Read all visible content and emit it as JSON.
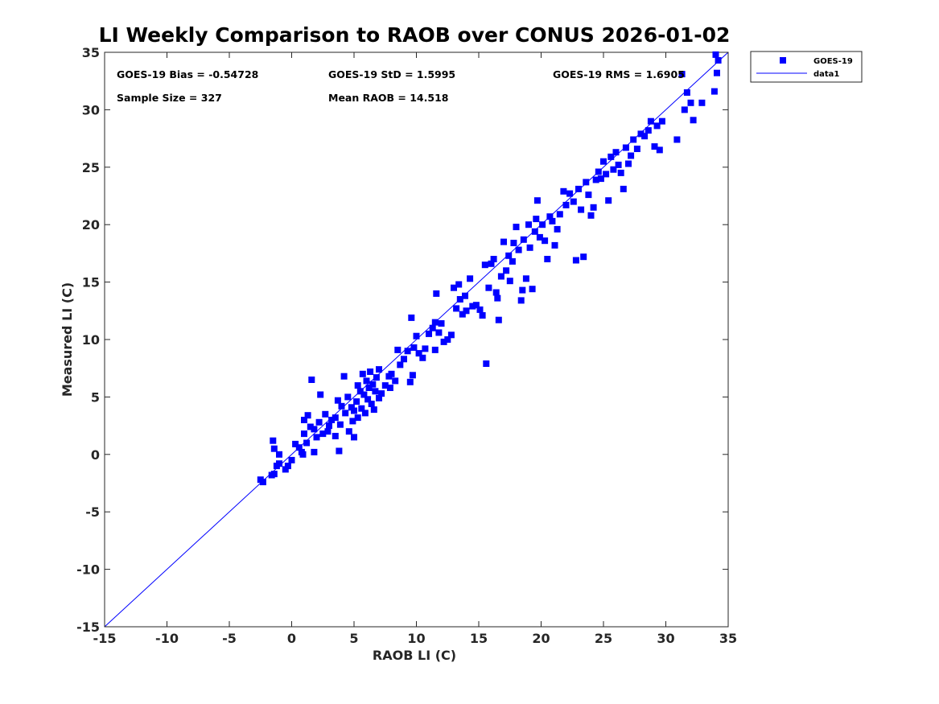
{
  "chart_data": {
    "type": "scatter",
    "title": "LI Weekly Comparison to RAOB over CONUS 2026-01-02",
    "xlabel": "RAOB LI (C)",
    "ylabel": "Measured LI (C)",
    "xlim": [
      -15,
      35
    ],
    "ylim": [
      -15,
      35
    ],
    "xticks": [
      -15,
      -10,
      -5,
      0,
      5,
      10,
      15,
      20,
      25,
      30,
      35
    ],
    "yticks": [
      -15,
      -10,
      -5,
      0,
      5,
      10,
      15,
      20,
      25,
      30,
      35
    ],
    "grid": false,
    "legend_position": "outside-top-right",
    "marker_color": "#0000ff",
    "line_color": "#0000ff",
    "stats": {
      "bias": "GOES-19 Bias = -0.54728",
      "std": "GOES-19 StD = 1.5995",
      "rms": "GOES-19 RMS = 1.6905",
      "sample": "Sample Size = 327",
      "mean": "Mean RAOB = 14.518"
    },
    "series": [
      {
        "name": "GOES-19",
        "kind": "scatter",
        "points": [
          [
            -2.5,
            -2.2
          ],
          [
            -2.3,
            -2.4
          ],
          [
            -1.6,
            -1.8
          ],
          [
            -1.4,
            -1.7
          ],
          [
            -1.2,
            -1.0
          ],
          [
            -1.0,
            -0.8
          ],
          [
            -1.5,
            1.2
          ],
          [
            -1.4,
            0.5
          ],
          [
            -1.0,
            0.0
          ],
          [
            -0.5,
            -1.3
          ],
          [
            -0.3,
            -1.0
          ],
          [
            0.0,
            -0.5
          ],
          [
            0.3,
            0.9
          ],
          [
            0.6,
            0.6
          ],
          [
            0.8,
            0.2
          ],
          [
            0.9,
            0.0
          ],
          [
            1.0,
            1.8
          ],
          [
            1.0,
            3.0
          ],
          [
            1.2,
            1.0
          ],
          [
            1.3,
            3.4
          ],
          [
            1.5,
            2.4
          ],
          [
            1.6,
            6.5
          ],
          [
            1.8,
            2.2
          ],
          [
            1.8,
            0.2
          ],
          [
            2.0,
            1.5
          ],
          [
            2.2,
            2.8
          ],
          [
            2.3,
            5.2
          ],
          [
            2.5,
            1.8
          ],
          [
            2.7,
            3.5
          ],
          [
            2.9,
            2.0
          ],
          [
            3.0,
            2.5
          ],
          [
            3.2,
            3.0
          ],
          [
            3.5,
            3.2
          ],
          [
            3.5,
            1.6
          ],
          [
            3.7,
            4.7
          ],
          [
            3.8,
            0.3
          ],
          [
            3.9,
            2.6
          ],
          [
            4.0,
            4.2
          ],
          [
            4.2,
            6.8
          ],
          [
            4.3,
            3.6
          ],
          [
            4.5,
            5.0
          ],
          [
            4.6,
            2.0
          ],
          [
            4.8,
            4.1
          ],
          [
            4.9,
            2.9
          ],
          [
            5.0,
            1.5
          ],
          [
            5.0,
            3.8
          ],
          [
            5.2,
            4.6
          ],
          [
            5.3,
            3.2
          ],
          [
            5.3,
            6.0
          ],
          [
            5.5,
            5.5
          ],
          [
            5.6,
            4.0
          ],
          [
            5.7,
            7.0
          ],
          [
            5.8,
            5.2
          ],
          [
            5.9,
            3.6
          ],
          [
            6.0,
            6.4
          ],
          [
            6.1,
            4.8
          ],
          [
            6.2,
            5.8
          ],
          [
            6.3,
            7.2
          ],
          [
            6.4,
            4.4
          ],
          [
            6.5,
            6.1
          ],
          [
            6.6,
            3.9
          ],
          [
            6.7,
            5.5
          ],
          [
            6.8,
            6.7
          ],
          [
            7.0,
            4.9
          ],
          [
            7.0,
            7.4
          ],
          [
            7.2,
            5.3
          ],
          [
            7.5,
            6.0
          ],
          [
            7.8,
            6.8
          ],
          [
            7.9,
            5.8
          ],
          [
            8.0,
            7.0
          ],
          [
            8.3,
            6.4
          ],
          [
            8.5,
            9.1
          ],
          [
            8.7,
            7.8
          ],
          [
            9.0,
            8.3
          ],
          [
            9.3,
            9.0
          ],
          [
            9.5,
            6.3
          ],
          [
            9.6,
            11.9
          ],
          [
            9.7,
            6.9
          ],
          [
            9.8,
            9.3
          ],
          [
            10.0,
            10.3
          ],
          [
            10.2,
            8.8
          ],
          [
            10.5,
            8.4
          ],
          [
            10.7,
            9.2
          ],
          [
            11.0,
            10.5
          ],
          [
            11.3,
            11.0
          ],
          [
            11.5,
            9.1
          ],
          [
            11.5,
            11.5
          ],
          [
            11.6,
            14.0
          ],
          [
            11.8,
            10.6
          ],
          [
            12.0,
            11.4
          ],
          [
            12.2,
            9.8
          ],
          [
            12.5,
            10.0
          ],
          [
            12.8,
            10.4
          ],
          [
            13.0,
            14.5
          ],
          [
            13.2,
            12.7
          ],
          [
            13.4,
            14.8
          ],
          [
            13.5,
            13.5
          ],
          [
            13.7,
            12.2
          ],
          [
            13.9,
            13.8
          ],
          [
            14.0,
            12.5
          ],
          [
            14.3,
            15.3
          ],
          [
            14.5,
            12.9
          ],
          [
            14.8,
            13.0
          ],
          [
            15.1,
            12.6
          ],
          [
            15.3,
            12.1
          ],
          [
            15.5,
            16.5
          ],
          [
            15.6,
            7.9
          ],
          [
            15.8,
            14.5
          ],
          [
            16.0,
            16.6
          ],
          [
            16.2,
            17.0
          ],
          [
            16.4,
            14.1
          ],
          [
            16.5,
            13.6
          ],
          [
            16.6,
            11.7
          ],
          [
            16.8,
            15.5
          ],
          [
            17.0,
            18.5
          ],
          [
            17.2,
            16.0
          ],
          [
            17.4,
            17.3
          ],
          [
            17.5,
            15.1
          ],
          [
            17.7,
            16.8
          ],
          [
            17.8,
            18.4
          ],
          [
            18.0,
            19.8
          ],
          [
            18.2,
            17.8
          ],
          [
            18.4,
            13.4
          ],
          [
            18.5,
            14.3
          ],
          [
            18.6,
            18.7
          ],
          [
            18.8,
            15.3
          ],
          [
            19.0,
            20.0
          ],
          [
            19.1,
            18.0
          ],
          [
            19.3,
            14.4
          ],
          [
            19.5,
            19.4
          ],
          [
            19.6,
            20.5
          ],
          [
            19.7,
            22.1
          ],
          [
            19.9,
            18.9
          ],
          [
            20.1,
            20.0
          ],
          [
            20.3,
            18.6
          ],
          [
            20.5,
            17.0
          ],
          [
            20.7,
            20.7
          ],
          [
            20.9,
            20.3
          ],
          [
            21.1,
            18.2
          ],
          [
            21.3,
            19.6
          ],
          [
            21.5,
            20.9
          ],
          [
            21.8,
            22.9
          ],
          [
            22.0,
            21.7
          ],
          [
            22.3,
            22.7
          ],
          [
            22.6,
            22.0
          ],
          [
            22.8,
            16.9
          ],
          [
            23.0,
            23.1
          ],
          [
            23.2,
            21.3
          ],
          [
            23.4,
            17.2
          ],
          [
            23.6,
            23.7
          ],
          [
            23.8,
            22.6
          ],
          [
            24.0,
            20.8
          ],
          [
            24.2,
            21.5
          ],
          [
            24.4,
            23.9
          ],
          [
            24.6,
            24.6
          ],
          [
            24.8,
            24.0
          ],
          [
            25.0,
            25.5
          ],
          [
            25.2,
            24.4
          ],
          [
            25.4,
            22.1
          ],
          [
            25.6,
            25.9
          ],
          [
            25.8,
            24.8
          ],
          [
            26.0,
            26.3
          ],
          [
            26.2,
            25.2
          ],
          [
            26.4,
            24.5
          ],
          [
            26.6,
            23.1
          ],
          [
            26.8,
            26.7
          ],
          [
            27.0,
            25.3
          ],
          [
            27.2,
            26.0
          ],
          [
            27.4,
            27.4
          ],
          [
            27.7,
            26.6
          ],
          [
            28.0,
            27.9
          ],
          [
            28.3,
            27.7
          ],
          [
            28.6,
            28.2
          ],
          [
            28.8,
            29.0
          ],
          [
            29.1,
            26.8
          ],
          [
            29.3,
            28.6
          ],
          [
            29.5,
            26.5
          ],
          [
            29.7,
            29.0
          ],
          [
            30.9,
            27.4
          ],
          [
            31.3,
            33.1
          ],
          [
            31.5,
            30.0
          ],
          [
            31.7,
            31.5
          ],
          [
            32.0,
            30.6
          ],
          [
            32.2,
            29.1
          ],
          [
            32.9,
            30.6
          ],
          [
            33.9,
            31.6
          ],
          [
            34.0,
            34.8
          ],
          [
            34.1,
            33.2
          ],
          [
            34.2,
            34.3
          ]
        ]
      },
      {
        "name": "data1",
        "kind": "line",
        "points": [
          [
            -15,
            -15
          ],
          [
            35,
            35
          ]
        ]
      }
    ]
  }
}
